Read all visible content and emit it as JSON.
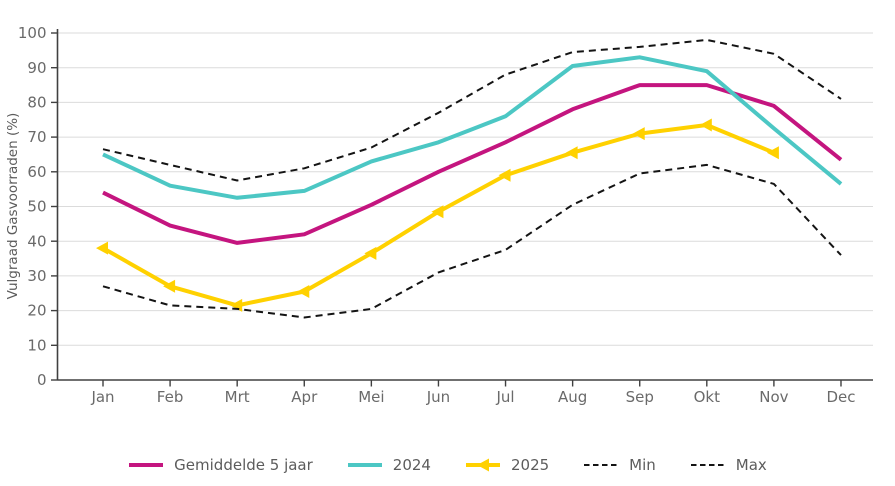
{
  "chart_data": {
    "type": "line",
    "title": "",
    "xlabel": "",
    "ylabel": "Vulgraad Gasvoorraden (%)",
    "ylim": [
      0,
      100
    ],
    "yticks": [
      0,
      10,
      20,
      30,
      40,
      50,
      60,
      70,
      80,
      90,
      100
    ],
    "grid": "horizontal",
    "legend_position": "bottom-center",
    "categories": [
      "Jan",
      "Feb",
      "Mrt",
      "Apr",
      "Mei",
      "Jun",
      "Jul",
      "Aug",
      "Sep",
      "Okt",
      "Nov",
      "Dec"
    ],
    "series": [
      {
        "name": "Gemiddelde 5 jaar",
        "color": "#C4157F",
        "style": "solid",
        "marker": "none",
        "values": [
          54,
          44.5,
          39.5,
          42,
          50.5,
          60,
          68.5,
          78,
          85,
          85,
          79,
          63.5
        ]
      },
      {
        "name": "2024",
        "color": "#4CC7C4",
        "style": "solid",
        "marker": "none",
        "values": [
          65,
          56,
          52.5,
          54.5,
          63,
          68.5,
          76,
          90.5,
          93,
          89,
          72.5,
          56.5
        ]
      },
      {
        "name": "2025",
        "color": "#FFD100",
        "style": "solid",
        "marker": "triangle-left",
        "values": [
          38,
          27,
          21.5,
          25.5,
          36.5,
          48.5,
          59,
          65.5,
          71,
          73.5,
          65.5,
          null
        ]
      },
      {
        "name": "Min",
        "color": "#141414",
        "style": "dashed",
        "marker": "none",
        "values": [
          27,
          21.5,
          20.5,
          18,
          20.5,
          31,
          37.5,
          50.5,
          59.5,
          62,
          56.5,
          36
        ]
      },
      {
        "name": "Max",
        "color": "#141414",
        "style": "dashed",
        "marker": "none",
        "values": [
          66.5,
          62,
          57.5,
          61,
          67,
          77,
          88,
          94.5,
          96,
          98,
          94,
          81
        ]
      }
    ]
  },
  "colors": {
    "background": "#ffffff",
    "gridline": "#dbdbdb",
    "axis": "#404040",
    "tick_label": "#6a6a6a",
    "axis_label": "#5c5c5c",
    "legend_text": "#5c5c5c"
  }
}
